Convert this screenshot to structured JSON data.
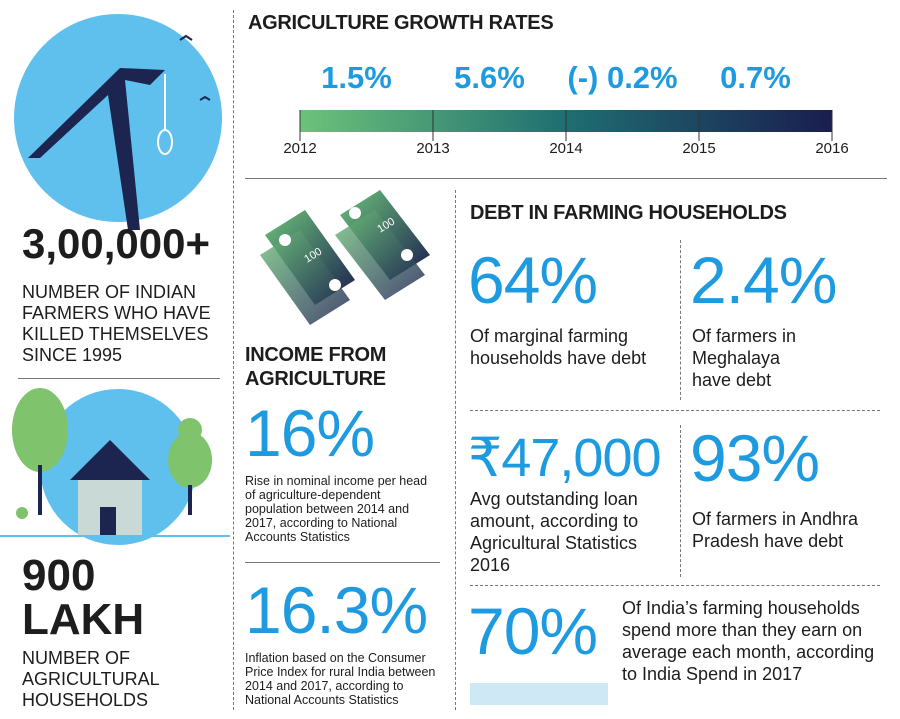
{
  "left": {
    "stat1": {
      "value": "3,00,000+",
      "label": "NUMBER OF INDIAN FARMERS WHO HAVE KILLED THEMSELVES SINCE 1995"
    },
    "stat2": {
      "value": "900 LAKH",
      "label": "NUMBER OF AGRICULTURAL HOUSEHOLDS"
    }
  },
  "growth": {
    "title": "AGRICULTURE GROWTH RATES",
    "rates": [
      "1.5%",
      "5.6%",
      "(-) 0.2%",
      "0.7%"
    ],
    "years": [
      "2012",
      "2013",
      "2014",
      "2015",
      "2016"
    ]
  },
  "income": {
    "title": "INCOME FROM AGRICULTURE",
    "banknote_label": "100",
    "stats": [
      {
        "value": "16%",
        "text": "Rise in nominal income per head of agriculture-dependent population between 2014 and 2017, according to National Accounts Statistics"
      },
      {
        "value": "16.3%",
        "text": "Inflation based on the Consumer Price Index for rural India between 2014 and 2017, according to National Accounts Statistics"
      }
    ]
  },
  "debt": {
    "title": "DEBT IN FARMING HOUSEHOLDS",
    "stats": [
      {
        "value": "64%",
        "text": "Of marginal farming households have debt"
      },
      {
        "value": "2.4%",
        "text": "Of farmers in Meghalaya have debt"
      },
      {
        "value": "₹47,000",
        "text": "Avg outstanding loan amount, according to Agricultural Statistics 2016"
      },
      {
        "value": "93%",
        "text": "Of farmers in Andhra Pradesh have debt"
      },
      {
        "value": "70%",
        "text": "Of India’s farming households spend more than they earn on average each month, according to India Spend in 2017"
      }
    ]
  }
}
